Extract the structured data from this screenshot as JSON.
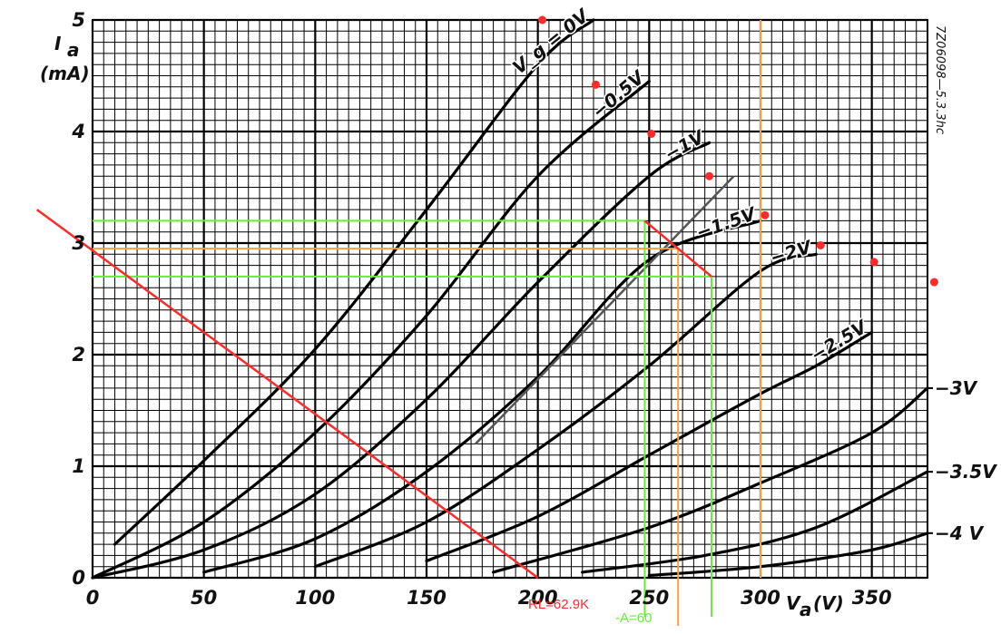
{
  "chart_data": {
    "type": "line",
    "title": "",
    "xlabel": "V_a (V)",
    "ylabel": "I_a (mA)",
    "xlim": [
      0,
      375
    ],
    "ylim": [
      0,
      5
    ],
    "grid": true,
    "x_ticks": [
      0,
      50,
      100,
      150,
      200,
      250,
      300,
      350
    ],
    "y_ticks": [
      0,
      1,
      2,
      3,
      4,
      5
    ],
    "x_tick_labels": [
      "0",
      "50",
      "100",
      "150",
      "200",
      "250",
      "300",
      "350"
    ],
    "y_tick_labels": [
      "0",
      "1",
      "2",
      "3",
      "4",
      "5"
    ],
    "axis_labels": {
      "y_symbol": "I",
      "y_subscript": "a",
      "y_unit": "(mA)",
      "x_symbol": "V",
      "x_subscript": "a",
      "x_unit": "(V)"
    },
    "side_note": "7Z06098—5.3.3hc",
    "series": [
      {
        "label": "V_g = 0V",
        "points": [
          [
            10,
            0.3
          ],
          [
            50,
            1.05
          ],
          [
            100,
            2.05
          ],
          [
            150,
            3.3
          ],
          [
            200,
            4.6
          ],
          [
            225,
            5.0
          ]
        ]
      },
      {
        "label": "−0.5V",
        "points": [
          [
            0,
            0.0
          ],
          [
            50,
            0.5
          ],
          [
            100,
            1.3
          ],
          [
            150,
            2.35
          ],
          [
            200,
            3.6
          ],
          [
            250,
            4.45
          ]
        ]
      },
      {
        "label": "−1V",
        "points": [
          [
            0,
            0.0
          ],
          [
            50,
            0.25
          ],
          [
            100,
            0.75
          ],
          [
            150,
            1.6
          ],
          [
            200,
            2.65
          ],
          [
            250,
            3.6
          ],
          [
            277,
            3.9
          ]
        ]
      },
      {
        "label": "−1.5V",
        "points": [
          [
            50,
            0.05
          ],
          [
            100,
            0.35
          ],
          [
            150,
            0.95
          ],
          [
            200,
            1.8
          ],
          [
            250,
            2.85
          ],
          [
            300,
            3.2
          ]
        ]
      },
      {
        "label": "−2V",
        "points": [
          [
            100,
            0.1
          ],
          [
            150,
            0.5
          ],
          [
            200,
            1.15
          ],
          [
            250,
            1.9
          ],
          [
            300,
            2.75
          ],
          [
            325,
            2.9
          ]
        ]
      },
      {
        "label": "−2.5V",
        "points": [
          [
            150,
            0.15
          ],
          [
            200,
            0.55
          ],
          [
            250,
            1.1
          ],
          [
            300,
            1.65
          ],
          [
            325,
            1.9
          ],
          [
            350,
            2.2
          ]
        ]
      },
      {
        "label": "−3V",
        "points": [
          [
            180,
            0.05
          ],
          [
            250,
            0.45
          ],
          [
            300,
            0.85
          ],
          [
            350,
            1.3
          ],
          [
            375,
            1.7
          ]
        ]
      },
      {
        "label": "−3.5V",
        "points": [
          [
            220,
            0.05
          ],
          [
            275,
            0.2
          ],
          [
            325,
            0.45
          ],
          [
            375,
            0.95
          ]
        ]
      },
      {
        "label": "−4 V",
        "points": [
          [
            250,
            0.02
          ],
          [
            300,
            0.1
          ],
          [
            350,
            0.25
          ],
          [
            375,
            0.4
          ]
        ]
      }
    ],
    "annotations": {
      "load_line": {
        "label": "RL=62.9K",
        "color": "#ff2a2a",
        "points": [
          [
            -25,
            3.3
          ],
          [
            200,
            0.0
          ]
        ]
      },
      "gain": {
        "label": "-A=60",
        "color": "#66ee33"
      },
      "green_horizontal_mA": [
        3.2,
        2.7
      ],
      "green_vertical_V": [
        248,
        278
      ],
      "operating_segment": {
        "color": "#ff2a2a",
        "points": [
          [
            248,
            3.2
          ],
          [
            278,
            2.7
          ]
        ]
      },
      "orange_color": "#f4a23a",
      "orange_horizontal_mA": 2.95,
      "orange_vertical_V": [
        263,
        300
      ],
      "gray_line": {
        "color": "#555555",
        "points": [
          [
            172,
            1.2
          ],
          [
            288,
            3.6
          ]
        ]
      },
      "red_points": [
        [
          202,
          5.0
        ],
        [
          226,
          4.42
        ],
        [
          251,
          3.98
        ],
        [
          277,
          3.6
        ],
        [
          302,
          3.25
        ],
        [
          327,
          2.98
        ],
        [
          351,
          2.83
        ],
        [
          378,
          2.65
        ]
      ]
    }
  }
}
